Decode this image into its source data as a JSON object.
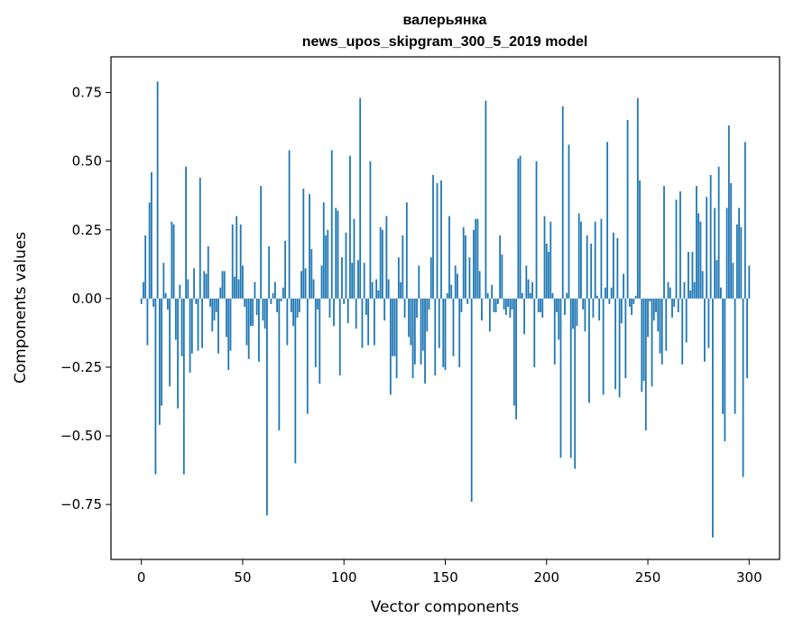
{
  "chart_data": {
    "type": "bar",
    "title": "валерьянка",
    "subtitle": "news_upos_skipgram_300_5_2019 model",
    "xlabel": "Vector components",
    "ylabel": "Components values",
    "xlim": [
      -15,
      315
    ],
    "ylim": [
      -0.95,
      0.88
    ],
    "xticks": [
      0,
      50,
      100,
      150,
      200,
      250,
      300
    ],
    "yticks": [
      -0.75,
      -0.5,
      -0.25,
      0.0,
      0.25,
      0.5,
      0.75
    ],
    "ytick_labels": [
      "−0.75",
      "−0.50",
      "−0.25",
      "0.00",
      "0.25",
      "0.50",
      "0.75"
    ],
    "grid": false,
    "bar_color": "#1f77b4",
    "values": [
      -0.02,
      0.06,
      0.23,
      -0.17,
      0.35,
      0.46,
      -0.03,
      -0.64,
      0.79,
      -0.46,
      -0.39,
      0.13,
      0.02,
      -0.04,
      -0.32,
      0.28,
      0.27,
      -0.15,
      -0.4,
      0.05,
      -0.21,
      -0.64,
      0.48,
      0.07,
      -0.27,
      -0.2,
      0.11,
      -0.02,
      -0.19,
      0.44,
      -0.18,
      0.1,
      0.09,
      0.19,
      -0.03,
      -0.12,
      -0.08,
      -0.05,
      -0.2,
      0.04,
      0.1,
      0.1,
      -0.14,
      -0.26,
      -0.19,
      0.27,
      0.08,
      0.3,
      0.07,
      0.27,
      0.12,
      -0.03,
      -0.17,
      -0.22,
      -0.1,
      -0.1,
      0.06,
      -0.06,
      -0.23,
      0.41,
      -0.08,
      -0.11,
      -0.79,
      0.19,
      -0.02,
      0.02,
      0.06,
      -0.05,
      -0.48,
      -0.01,
      0.04,
      0.21,
      -0.17,
      0.54,
      -0.05,
      -0.1,
      -0.6,
      -0.07,
      -0.05,
      0.1,
      0.4,
      0.11,
      -0.42,
      0.38,
      0.18,
      0.07,
      -0.25,
      -0.04,
      -0.31,
      0.12,
      0.35,
      0.23,
      0.25,
      -0.07,
      0.54,
      -0.1,
      0.33,
      0.32,
      -0.28,
      0.15,
      -0.02,
      0.24,
      -0.09,
      0.52,
      0.13,
      0.29,
      -0.11,
      0.14,
      0.73,
      -0.18,
      0.13,
      -0.06,
      -0.17,
      0.5,
      0.06,
      -0.17,
      0.07,
      0.03,
      0.26,
      0.25,
      -0.08,
      0.3,
      0.07,
      -0.35,
      -0.21,
      -0.21,
      -0.29,
      0.15,
      0.06,
      0.23,
      -0.07,
      0.35,
      -0.14,
      -0.17,
      -0.29,
      -0.24,
      -0.07,
      0.12,
      -0.24,
      -0.19,
      -0.31,
      -0.12,
      -0.04,
      0.15,
      0.45,
      -0.28,
      0.42,
      -0.18,
      0.43,
      -0.25,
      -0.26,
      0.02,
      0.3,
      0.05,
      -0.21,
      0.12,
      0.09,
      -0.25,
      -0.05,
      0.26,
      0.23,
      -0.02,
      0.15,
      -0.74,
      0.25,
      0.29,
      0.29,
      0.1,
      -0.08,
      0.0,
      0.72,
      0.02,
      -0.12,
      0.05,
      -0.05,
      -0.05,
      -0.02,
      0.23,
      0.16,
      -0.04,
      -0.06,
      -0.03,
      -0.07,
      -0.04,
      -0.39,
      -0.44,
      0.51,
      0.52,
      0.02,
      -0.13,
      0.12,
      0.07,
      0.02,
      0.06,
      -0.25,
      0.5,
      -0.05,
      -0.05,
      -0.07,
      0.3,
      0.2,
      0.17,
      0.28,
      0.02,
      -0.24,
      -0.05,
      -0.15,
      -0.58,
      0.7,
      -0.06,
      0.02,
      0.56,
      -0.58,
      -0.11,
      -0.62,
      -0.1,
      0.31,
      0.28,
      -0.04,
      -0.12,
      0.23,
      -0.38,
      0.2,
      -0.07,
      0.28,
      0.01,
      -0.08,
      0.29,
      -0.35,
      0.04,
      0.57,
      -0.02,
      0.04,
      0.24,
      -0.33,
      0.22,
      -0.36,
      -0.09,
      0.09,
      -0.29,
      0.65,
      -0.03,
      -0.06,
      -0.02,
      0.01,
      0.73,
      0.43,
      -0.34,
      -0.3,
      -0.48,
      -0.14,
      -0.01,
      -0.32,
      -0.08,
      -0.05,
      -0.12,
      -0.2,
      -0.24,
      0.41,
      -0.19,
      0.06,
      0.04,
      -0.07,
      -0.03,
      0.36,
      -0.05,
      0.39,
      -0.24,
      0.06,
      -0.16,
      0.17,
      0.03,
      0.17,
      0.06,
      0.41,
      0.31,
      0.28,
      0.1,
      -0.23,
      0.37,
      -0.18,
      0.45,
      -0.87,
      0.33,
      0.14,
      0.48,
      0.04,
      -0.42,
      -0.52,
      0.33,
      0.63,
      0.42,
      0.13,
      -0.42,
      0.27,
      0.33,
      0.26,
      -0.65,
      0.57,
      -0.29,
      0.12
    ]
  }
}
